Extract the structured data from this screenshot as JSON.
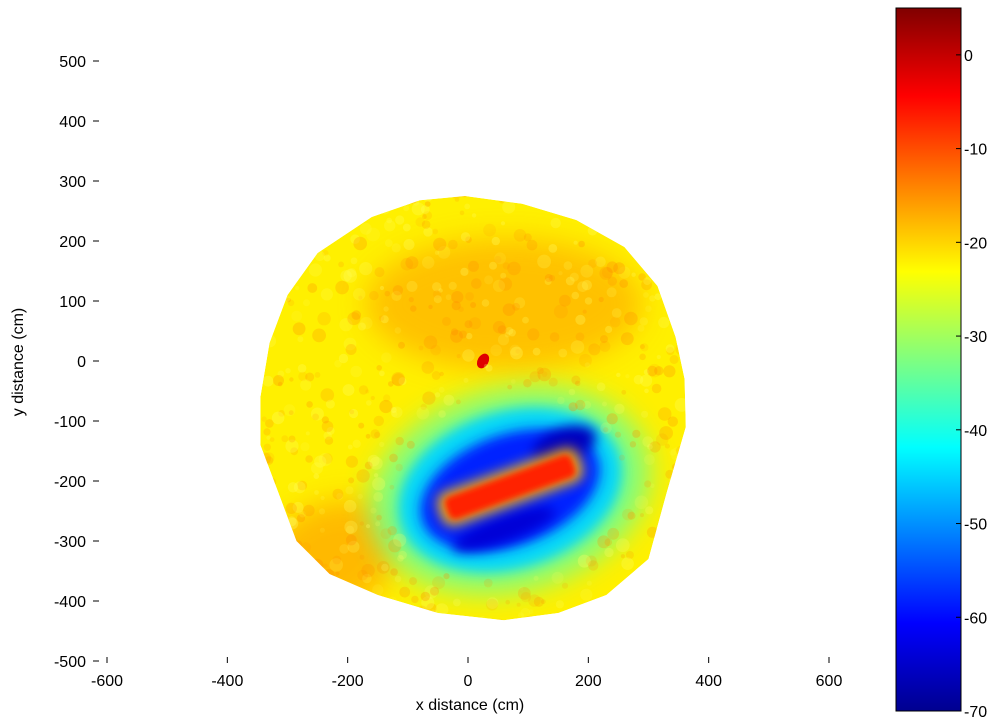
{
  "chart_data": [
    {
      "type": "heatmap",
      "title": "",
      "xlabel": "x distance (cm)",
      "ylabel": "y distance (cm)",
      "xlim": [
        -600,
        600
      ],
      "ylim": [
        -500,
        580
      ],
      "x_ticks": [
        -600,
        -400,
        -200,
        0,
        200,
        400,
        600
      ],
      "y_ticks": [
        500,
        400,
        300,
        200,
        100,
        0,
        -100,
        -200,
        -300,
        -400,
        -500
      ],
      "grid": false,
      "boundary_polygon_cm": [
        [
          -5,
          275
        ],
        [
          90,
          262
        ],
        [
          180,
          235
        ],
        [
          260,
          190
        ],
        [
          315,
          125
        ],
        [
          345,
          40
        ],
        [
          360,
          -30
        ],
        [
          362,
          -110
        ],
        [
          330,
          -220
        ],
        [
          300,
          -330
        ],
        [
          230,
          -390
        ],
        [
          150,
          -420
        ],
        [
          60,
          -432
        ],
        [
          -50,
          -420
        ],
        [
          -150,
          -390
        ],
        [
          -230,
          -355
        ],
        [
          -285,
          -300
        ],
        [
          -315,
          -220
        ],
        [
          -345,
          -140
        ],
        [
          -345,
          -60
        ],
        [
          -330,
          30
        ],
        [
          -300,
          110
        ],
        [
          -250,
          180
        ],
        [
          -160,
          240
        ],
        [
          -80,
          268
        ]
      ],
      "regions": [
        {
          "label": "background level",
          "value": -22
        },
        {
          "label": "upper warm lobe",
          "center_cm": [
            60,
            95
          ],
          "value": -18
        },
        {
          "label": "lower-left warm edge",
          "center_cm": [
            -230,
            -330
          ],
          "value": -17
        },
        {
          "label": "ring around object",
          "center_cm": [
            70,
            -215
          ],
          "value": -45
        },
        {
          "label": "inner low ring",
          "center_cm": [
            70,
            -215
          ],
          "value": -58
        },
        {
          "label": "dark edge (upper right of object)",
          "center_cm": [
            160,
            -140
          ],
          "value": -66
        },
        {
          "label": "dark edge (lower side of object)",
          "center_cm": [
            60,
            -280
          ],
          "value": -64
        },
        {
          "label": "central high strip",
          "center_cm": [
            70,
            -210
          ],
          "value": -7
        },
        {
          "label": "small source near origin",
          "center_cm": [
            25,
            0
          ],
          "value": -2
        }
      ]
    },
    {
      "type": "colorbar",
      "colormap": "jet",
      "range": [
        -70,
        5
      ],
      "ticks": [
        0,
        -10,
        -20,
        -30,
        -40,
        -50,
        -60,
        -70
      ],
      "colors": [
        "#00008f",
        "#0000ff",
        "#00ffff",
        "#ffff00",
        "#ff0000",
        "#800000"
      ]
    }
  ]
}
